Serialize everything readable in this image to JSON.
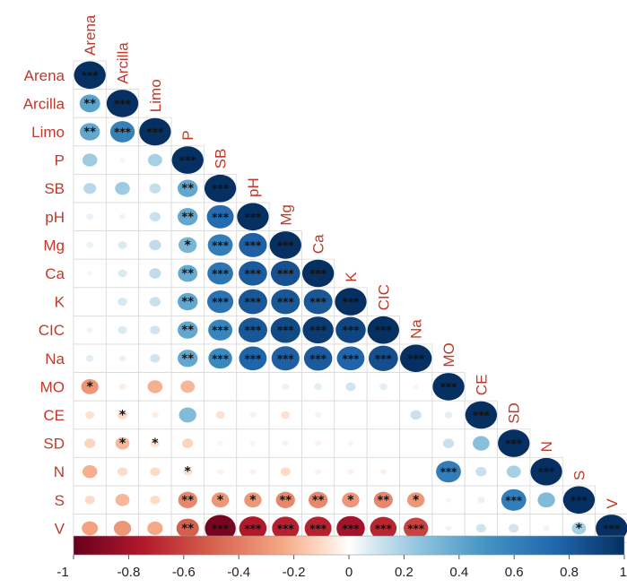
{
  "chart_data": {
    "type": "heatmap",
    "variables": [
      "Arena",
      "Arcilla",
      "Limo",
      "P",
      "SB",
      "pH",
      "Mg",
      "Ca",
      "K",
      "CIC",
      "Na",
      "MO",
      "CE",
      "SD",
      "N",
      "S",
      "V"
    ],
    "layout": "lower-triangle",
    "value_range": [
      -1,
      1
    ],
    "colors": {
      "negative": "#67001f",
      "neutral": "#ffffff",
      "positive": "#053061"
    },
    "label_color": "#c0392b",
    "cells": [
      {
        "row": "Arena",
        "col": "Arena",
        "r": 1,
        "sig": "***"
      },
      {
        "row": "Arcilla",
        "col": "Arena",
        "r": 0.42,
        "sig": "**"
      },
      {
        "row": "Arcilla",
        "col": "Arcilla",
        "r": 1,
        "sig": "***"
      },
      {
        "row": "Limo",
        "col": "Arena",
        "r": 0.4,
        "sig": "**"
      },
      {
        "row": "Limo",
        "col": "Arcilla",
        "r": 0.6,
        "sig": "***"
      },
      {
        "row": "Limo",
        "col": "Limo",
        "r": 1,
        "sig": "***"
      },
      {
        "row": "P",
        "col": "Arena",
        "r": 0.22,
        "sig": ""
      },
      {
        "row": "P",
        "col": "Arcilla",
        "r": 0.03,
        "sig": ""
      },
      {
        "row": "P",
        "col": "Limo",
        "r": 0.2,
        "sig": ""
      },
      {
        "row": "P",
        "col": "P",
        "r": 1,
        "sig": "***"
      },
      {
        "row": "SB",
        "col": "Arena",
        "r": 0.16,
        "sig": ""
      },
      {
        "row": "SB",
        "col": "Arcilla",
        "r": 0.22,
        "sig": ""
      },
      {
        "row": "SB",
        "col": "Limo",
        "r": 0.13,
        "sig": ""
      },
      {
        "row": "SB",
        "col": "P",
        "r": 0.4,
        "sig": "**"
      },
      {
        "row": "SB",
        "col": "SB",
        "r": 1,
        "sig": "***"
      },
      {
        "row": "pH",
        "col": "Arena",
        "r": 0.05,
        "sig": ""
      },
      {
        "row": "pH",
        "col": "Arcilla",
        "r": 0.04,
        "sig": ""
      },
      {
        "row": "pH",
        "col": "Limo",
        "r": 0.12,
        "sig": ""
      },
      {
        "row": "pH",
        "col": "P",
        "r": 0.4,
        "sig": "**"
      },
      {
        "row": "pH",
        "col": "SB",
        "r": 0.72,
        "sig": "***"
      },
      {
        "row": "pH",
        "col": "pH",
        "r": 1,
        "sig": "***"
      },
      {
        "row": "Mg",
        "col": "Arena",
        "r": 0.05,
        "sig": ""
      },
      {
        "row": "Mg",
        "col": "Arcilla",
        "r": 0.08,
        "sig": ""
      },
      {
        "row": "Mg",
        "col": "Limo",
        "r": 0.14,
        "sig": ""
      },
      {
        "row": "Mg",
        "col": "P",
        "r": 0.33,
        "sig": "*"
      },
      {
        "row": "Mg",
        "col": "SB",
        "r": 0.62,
        "sig": "***"
      },
      {
        "row": "Mg",
        "col": "pH",
        "r": 0.78,
        "sig": "***"
      },
      {
        "row": "Mg",
        "col": "Mg",
        "r": 1,
        "sig": "***"
      },
      {
        "row": "Ca",
        "col": "Arena",
        "r": 0.03,
        "sig": ""
      },
      {
        "row": "Ca",
        "col": "Arcilla",
        "r": 0.08,
        "sig": ""
      },
      {
        "row": "Ca",
        "col": "Limo",
        "r": 0.14,
        "sig": ""
      },
      {
        "row": "Ca",
        "col": "P",
        "r": 0.38,
        "sig": "**"
      },
      {
        "row": "Ca",
        "col": "SB",
        "r": 0.66,
        "sig": "***"
      },
      {
        "row": "Ca",
        "col": "pH",
        "r": 0.8,
        "sig": "***"
      },
      {
        "row": "Ca",
        "col": "Mg",
        "r": 0.85,
        "sig": "***"
      },
      {
        "row": "Ca",
        "col": "Ca",
        "r": 1,
        "sig": "***"
      },
      {
        "row": "K",
        "col": "Arena",
        "r": 0.0,
        "sig": ""
      },
      {
        "row": "K",
        "col": "Arcilla",
        "r": 0.09,
        "sig": ""
      },
      {
        "row": "K",
        "col": "Limo",
        "r": 0.12,
        "sig": ""
      },
      {
        "row": "K",
        "col": "P",
        "r": 0.4,
        "sig": "**"
      },
      {
        "row": "K",
        "col": "SB",
        "r": 0.68,
        "sig": "***"
      },
      {
        "row": "K",
        "col": "pH",
        "r": 0.82,
        "sig": "***"
      },
      {
        "row": "K",
        "col": "Mg",
        "r": 0.82,
        "sig": "***"
      },
      {
        "row": "K",
        "col": "Ca",
        "r": 0.82,
        "sig": "***"
      },
      {
        "row": "K",
        "col": "K",
        "r": 1,
        "sig": "***"
      },
      {
        "row": "CIC",
        "col": "Arena",
        "r": 0.04,
        "sig": ""
      },
      {
        "row": "CIC",
        "col": "Arcilla",
        "r": 0.08,
        "sig": ""
      },
      {
        "row": "CIC",
        "col": "Limo",
        "r": 0.1,
        "sig": ""
      },
      {
        "row": "CIC",
        "col": "P",
        "r": 0.4,
        "sig": "**"
      },
      {
        "row": "CIC",
        "col": "SB",
        "r": 0.58,
        "sig": "***"
      },
      {
        "row": "CIC",
        "col": "pH",
        "r": 0.82,
        "sig": "***"
      },
      {
        "row": "CIC",
        "col": "Mg",
        "r": 0.88,
        "sig": "***"
      },
      {
        "row": "CIC",
        "col": "Ca",
        "r": 0.95,
        "sig": "***"
      },
      {
        "row": "CIC",
        "col": "K",
        "r": 0.9,
        "sig": "***"
      },
      {
        "row": "CIC",
        "col": "CIC",
        "r": 1,
        "sig": "***"
      },
      {
        "row": "Na",
        "col": "Arena",
        "r": 0.06,
        "sig": ""
      },
      {
        "row": "Na",
        "col": "Arcilla",
        "r": 0.05,
        "sig": ""
      },
      {
        "row": "Na",
        "col": "Limo",
        "r": 0.1,
        "sig": ""
      },
      {
        "row": "Na",
        "col": "P",
        "r": 0.4,
        "sig": "**"
      },
      {
        "row": "Na",
        "col": "SB",
        "r": 0.56,
        "sig": "***"
      },
      {
        "row": "Na",
        "col": "pH",
        "r": 0.76,
        "sig": "***"
      },
      {
        "row": "Na",
        "col": "Mg",
        "r": 0.78,
        "sig": "***"
      },
      {
        "row": "Na",
        "col": "Ca",
        "r": 0.8,
        "sig": "***"
      },
      {
        "row": "Na",
        "col": "K",
        "r": 0.76,
        "sig": "***"
      },
      {
        "row": "Na",
        "col": "CIC",
        "r": 0.86,
        "sig": "***"
      },
      {
        "row": "Na",
        "col": "Na",
        "r": 1,
        "sig": "***"
      },
      {
        "row": "MO",
        "col": "Arena",
        "r": -0.3,
        "sig": "*"
      },
      {
        "row": "MO",
        "col": "Arcilla",
        "r": -0.05,
        "sig": ""
      },
      {
        "row": "MO",
        "col": "Limo",
        "r": -0.22,
        "sig": ""
      },
      {
        "row": "MO",
        "col": "P",
        "r": -0.2,
        "sig": ""
      },
      {
        "row": "MO",
        "col": "SB",
        "r": 0.0,
        "sig": ""
      },
      {
        "row": "MO",
        "col": "pH",
        "r": 0.0,
        "sig": ""
      },
      {
        "row": "MO",
        "col": "Mg",
        "r": 0.05,
        "sig": ""
      },
      {
        "row": "MO",
        "col": "Ca",
        "r": 0.06,
        "sig": ""
      },
      {
        "row": "MO",
        "col": "K",
        "r": 0.1,
        "sig": ""
      },
      {
        "row": "MO",
        "col": "CIC",
        "r": 0.06,
        "sig": ""
      },
      {
        "row": "MO",
        "col": "Na",
        "r": 0.03,
        "sig": ""
      },
      {
        "row": "MO",
        "col": "MO",
        "r": 1,
        "sig": "***"
      },
      {
        "row": "CE",
        "col": "Arena",
        "r": -0.08,
        "sig": ""
      },
      {
        "row": "CE",
        "col": "Arcilla",
        "r": -0.1,
        "sig": "*"
      },
      {
        "row": "CE",
        "col": "Limo",
        "r": -0.05,
        "sig": ""
      },
      {
        "row": "CE",
        "col": "P",
        "r": 0.3,
        "sig": ""
      },
      {
        "row": "CE",
        "col": "SB",
        "r": -0.08,
        "sig": ""
      },
      {
        "row": "CE",
        "col": "pH",
        "r": -0.04,
        "sig": ""
      },
      {
        "row": "CE",
        "col": "Mg",
        "r": -0.08,
        "sig": ""
      },
      {
        "row": "CE",
        "col": "Ca",
        "r": -0.04,
        "sig": ""
      },
      {
        "row": "CE",
        "col": "K",
        "r": 0.0,
        "sig": ""
      },
      {
        "row": "CE",
        "col": "CIC",
        "r": 0.0,
        "sig": ""
      },
      {
        "row": "CE",
        "col": "Na",
        "r": 0.12,
        "sig": ""
      },
      {
        "row": "CE",
        "col": "MO",
        "r": 0.06,
        "sig": ""
      },
      {
        "row": "CE",
        "col": "CE",
        "r": 1,
        "sig": "***"
      },
      {
        "row": "SD",
        "col": "Arena",
        "r": -0.12,
        "sig": ""
      },
      {
        "row": "SD",
        "col": "Arcilla",
        "r": -0.2,
        "sig": "*"
      },
      {
        "row": "SD",
        "col": "Limo",
        "r": -0.08,
        "sig": "*"
      },
      {
        "row": "SD",
        "col": "P",
        "r": -0.12,
        "sig": ""
      },
      {
        "row": "SD",
        "col": "SB",
        "r": -0.03,
        "sig": ""
      },
      {
        "row": "SD",
        "col": "pH",
        "r": -0.03,
        "sig": ""
      },
      {
        "row": "SD",
        "col": "Mg",
        "r": -0.04,
        "sig": ""
      },
      {
        "row": "SD",
        "col": "Ca",
        "r": -0.04,
        "sig": ""
      },
      {
        "row": "SD",
        "col": "K",
        "r": -0.03,
        "sig": ""
      },
      {
        "row": "SD",
        "col": "CIC",
        "r": 0.0,
        "sig": ""
      },
      {
        "row": "SD",
        "col": "Na",
        "r": 0.0,
        "sig": ""
      },
      {
        "row": "SD",
        "col": "MO",
        "r": 0.12,
        "sig": ""
      },
      {
        "row": "SD",
        "col": "CE",
        "r": 0.28,
        "sig": ""
      },
      {
        "row": "SD",
        "col": "SD",
        "r": 1,
        "sig": "***"
      },
      {
        "row": "N",
        "col": "Arena",
        "r": -0.22,
        "sig": ""
      },
      {
        "row": "N",
        "col": "Arcilla",
        "r": -0.1,
        "sig": ""
      },
      {
        "row": "N",
        "col": "Limo",
        "r": -0.1,
        "sig": ""
      },
      {
        "row": "N",
        "col": "P",
        "r": -0.08,
        "sig": "*"
      },
      {
        "row": "N",
        "col": "SB",
        "r": -0.04,
        "sig": ""
      },
      {
        "row": "N",
        "col": "pH",
        "r": -0.04,
        "sig": ""
      },
      {
        "row": "N",
        "col": "Mg",
        "r": -0.1,
        "sig": ""
      },
      {
        "row": "N",
        "col": "Ca",
        "r": -0.04,
        "sig": ""
      },
      {
        "row": "N",
        "col": "K",
        "r": -0.04,
        "sig": ""
      },
      {
        "row": "N",
        "col": "CIC",
        "r": -0.04,
        "sig": ""
      },
      {
        "row": "N",
        "col": "Na",
        "r": 0.0,
        "sig": ""
      },
      {
        "row": "N",
        "col": "MO",
        "r": 0.62,
        "sig": "***"
      },
      {
        "row": "N",
        "col": "CE",
        "r": 0.12,
        "sig": ""
      },
      {
        "row": "N",
        "col": "SD",
        "r": 0.2,
        "sig": ""
      },
      {
        "row": "N",
        "col": "N",
        "r": 1,
        "sig": "***"
      },
      {
        "row": "S",
        "col": "Arena",
        "r": -0.1,
        "sig": ""
      },
      {
        "row": "S",
        "col": "Arcilla",
        "r": -0.2,
        "sig": ""
      },
      {
        "row": "S",
        "col": "Limo",
        "r": -0.1,
        "sig": ""
      },
      {
        "row": "S",
        "col": "P",
        "r": -0.36,
        "sig": "**"
      },
      {
        "row": "S",
        "col": "SB",
        "r": -0.3,
        "sig": "*"
      },
      {
        "row": "S",
        "col": "pH",
        "r": -0.3,
        "sig": "*"
      },
      {
        "row": "S",
        "col": "Mg",
        "r": -0.36,
        "sig": "**"
      },
      {
        "row": "S",
        "col": "Ca",
        "r": -0.36,
        "sig": "**"
      },
      {
        "row": "S",
        "col": "K",
        "r": -0.3,
        "sig": "*"
      },
      {
        "row": "S",
        "col": "CIC",
        "r": -0.36,
        "sig": "**"
      },
      {
        "row": "S",
        "col": "Na",
        "r": -0.3,
        "sig": "*"
      },
      {
        "row": "S",
        "col": "MO",
        "r": 0.03,
        "sig": ""
      },
      {
        "row": "S",
        "col": "CE",
        "r": 0.05,
        "sig": ""
      },
      {
        "row": "S",
        "col": "SD",
        "r": 0.62,
        "sig": "***"
      },
      {
        "row": "S",
        "col": "N",
        "r": 0.3,
        "sig": ""
      },
      {
        "row": "S",
        "col": "S",
        "r": 1,
        "sig": "***"
      },
      {
        "row": "V",
        "col": "Arena",
        "r": -0.26,
        "sig": ""
      },
      {
        "row": "V",
        "col": "Arcilla",
        "r": -0.3,
        "sig": ""
      },
      {
        "row": "V",
        "col": "Limo",
        "r": -0.24,
        "sig": ""
      },
      {
        "row": "V",
        "col": "P",
        "r": -0.5,
        "sig": "**"
      },
      {
        "row": "V",
        "col": "SB",
        "r": -0.95,
        "sig": "***"
      },
      {
        "row": "V",
        "col": "pH",
        "r": -0.75,
        "sig": "***"
      },
      {
        "row": "V",
        "col": "Mg",
        "r": -0.72,
        "sig": "***"
      },
      {
        "row": "V",
        "col": "Ca",
        "r": -0.72,
        "sig": "***"
      },
      {
        "row": "V",
        "col": "K",
        "r": -0.8,
        "sig": "***"
      },
      {
        "row": "V",
        "col": "CIC",
        "r": -0.7,
        "sig": "***"
      },
      {
        "row": "V",
        "col": "Na",
        "r": -0.6,
        "sig": "***"
      },
      {
        "row": "V",
        "col": "MO",
        "r": 0.04,
        "sig": ""
      },
      {
        "row": "V",
        "col": "CE",
        "r": 0.1,
        "sig": ""
      },
      {
        "row": "V",
        "col": "SD",
        "r": 0.1,
        "sig": ""
      },
      {
        "row": "V",
        "col": "N",
        "r": 0.04,
        "sig": ""
      },
      {
        "row": "V",
        "col": "S",
        "r": 0.2,
        "sig": "*"
      },
      {
        "row": "V",
        "col": "V",
        "r": 1,
        "sig": "***"
      }
    ],
    "colorbar": {
      "ticks": [
        "-1",
        "-0.8",
        "-0.6",
        "-0.4",
        "-0.2",
        "0",
        "0.2",
        "0.4",
        "0.6",
        "0.8",
        "1"
      ]
    }
  }
}
